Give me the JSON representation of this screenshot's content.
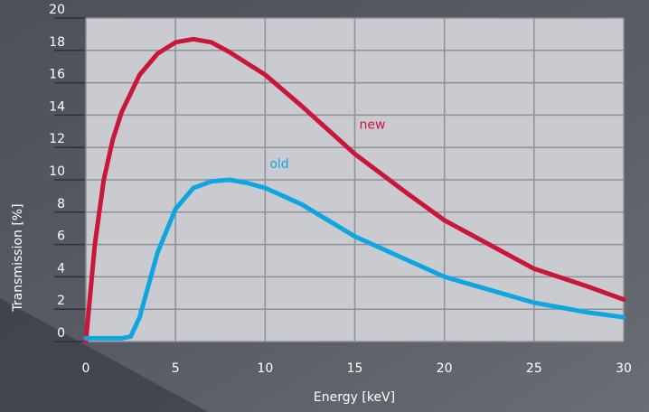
{
  "chart_data": {
    "type": "line",
    "x_label": "Energy [keV]",
    "y_label": "Transmission [%]",
    "xlim": [
      0,
      30
    ],
    "ylim": [
      0,
      20
    ],
    "xticks": [
      0,
      5,
      10,
      15,
      20,
      25,
      30
    ],
    "yticks": [
      0,
      2,
      4,
      6,
      8,
      10,
      12,
      14,
      16,
      18,
      20
    ],
    "grid": true,
    "series": [
      {
        "name": "new",
        "color": "#c8173a",
        "x": [
          0,
          0.5,
          1,
          1.5,
          2,
          3,
          4,
          5,
          6,
          7,
          8,
          10,
          12,
          15,
          18,
          20,
          25,
          28,
          30
        ],
        "values": [
          0,
          6,
          10,
          12.5,
          14.2,
          16.5,
          17.8,
          18.5,
          18.7,
          18.5,
          17.9,
          16.5,
          14.6,
          11.6,
          9.1,
          7.5,
          4.5,
          3.4,
          2.6
        ]
      },
      {
        "name": "old",
        "color": "#0fa6e0",
        "x": [
          0,
          2,
          2.5,
          3,
          4,
          5,
          6,
          7,
          8,
          9,
          10,
          12,
          15,
          20,
          25,
          28,
          30
        ],
        "values": [
          0.2,
          0.2,
          0.3,
          1.5,
          5.5,
          8.2,
          9.5,
          9.9,
          10,
          9.8,
          9.5,
          8.5,
          6.5,
          4,
          2.4,
          1.8,
          1.5
        ]
      }
    ]
  }
}
